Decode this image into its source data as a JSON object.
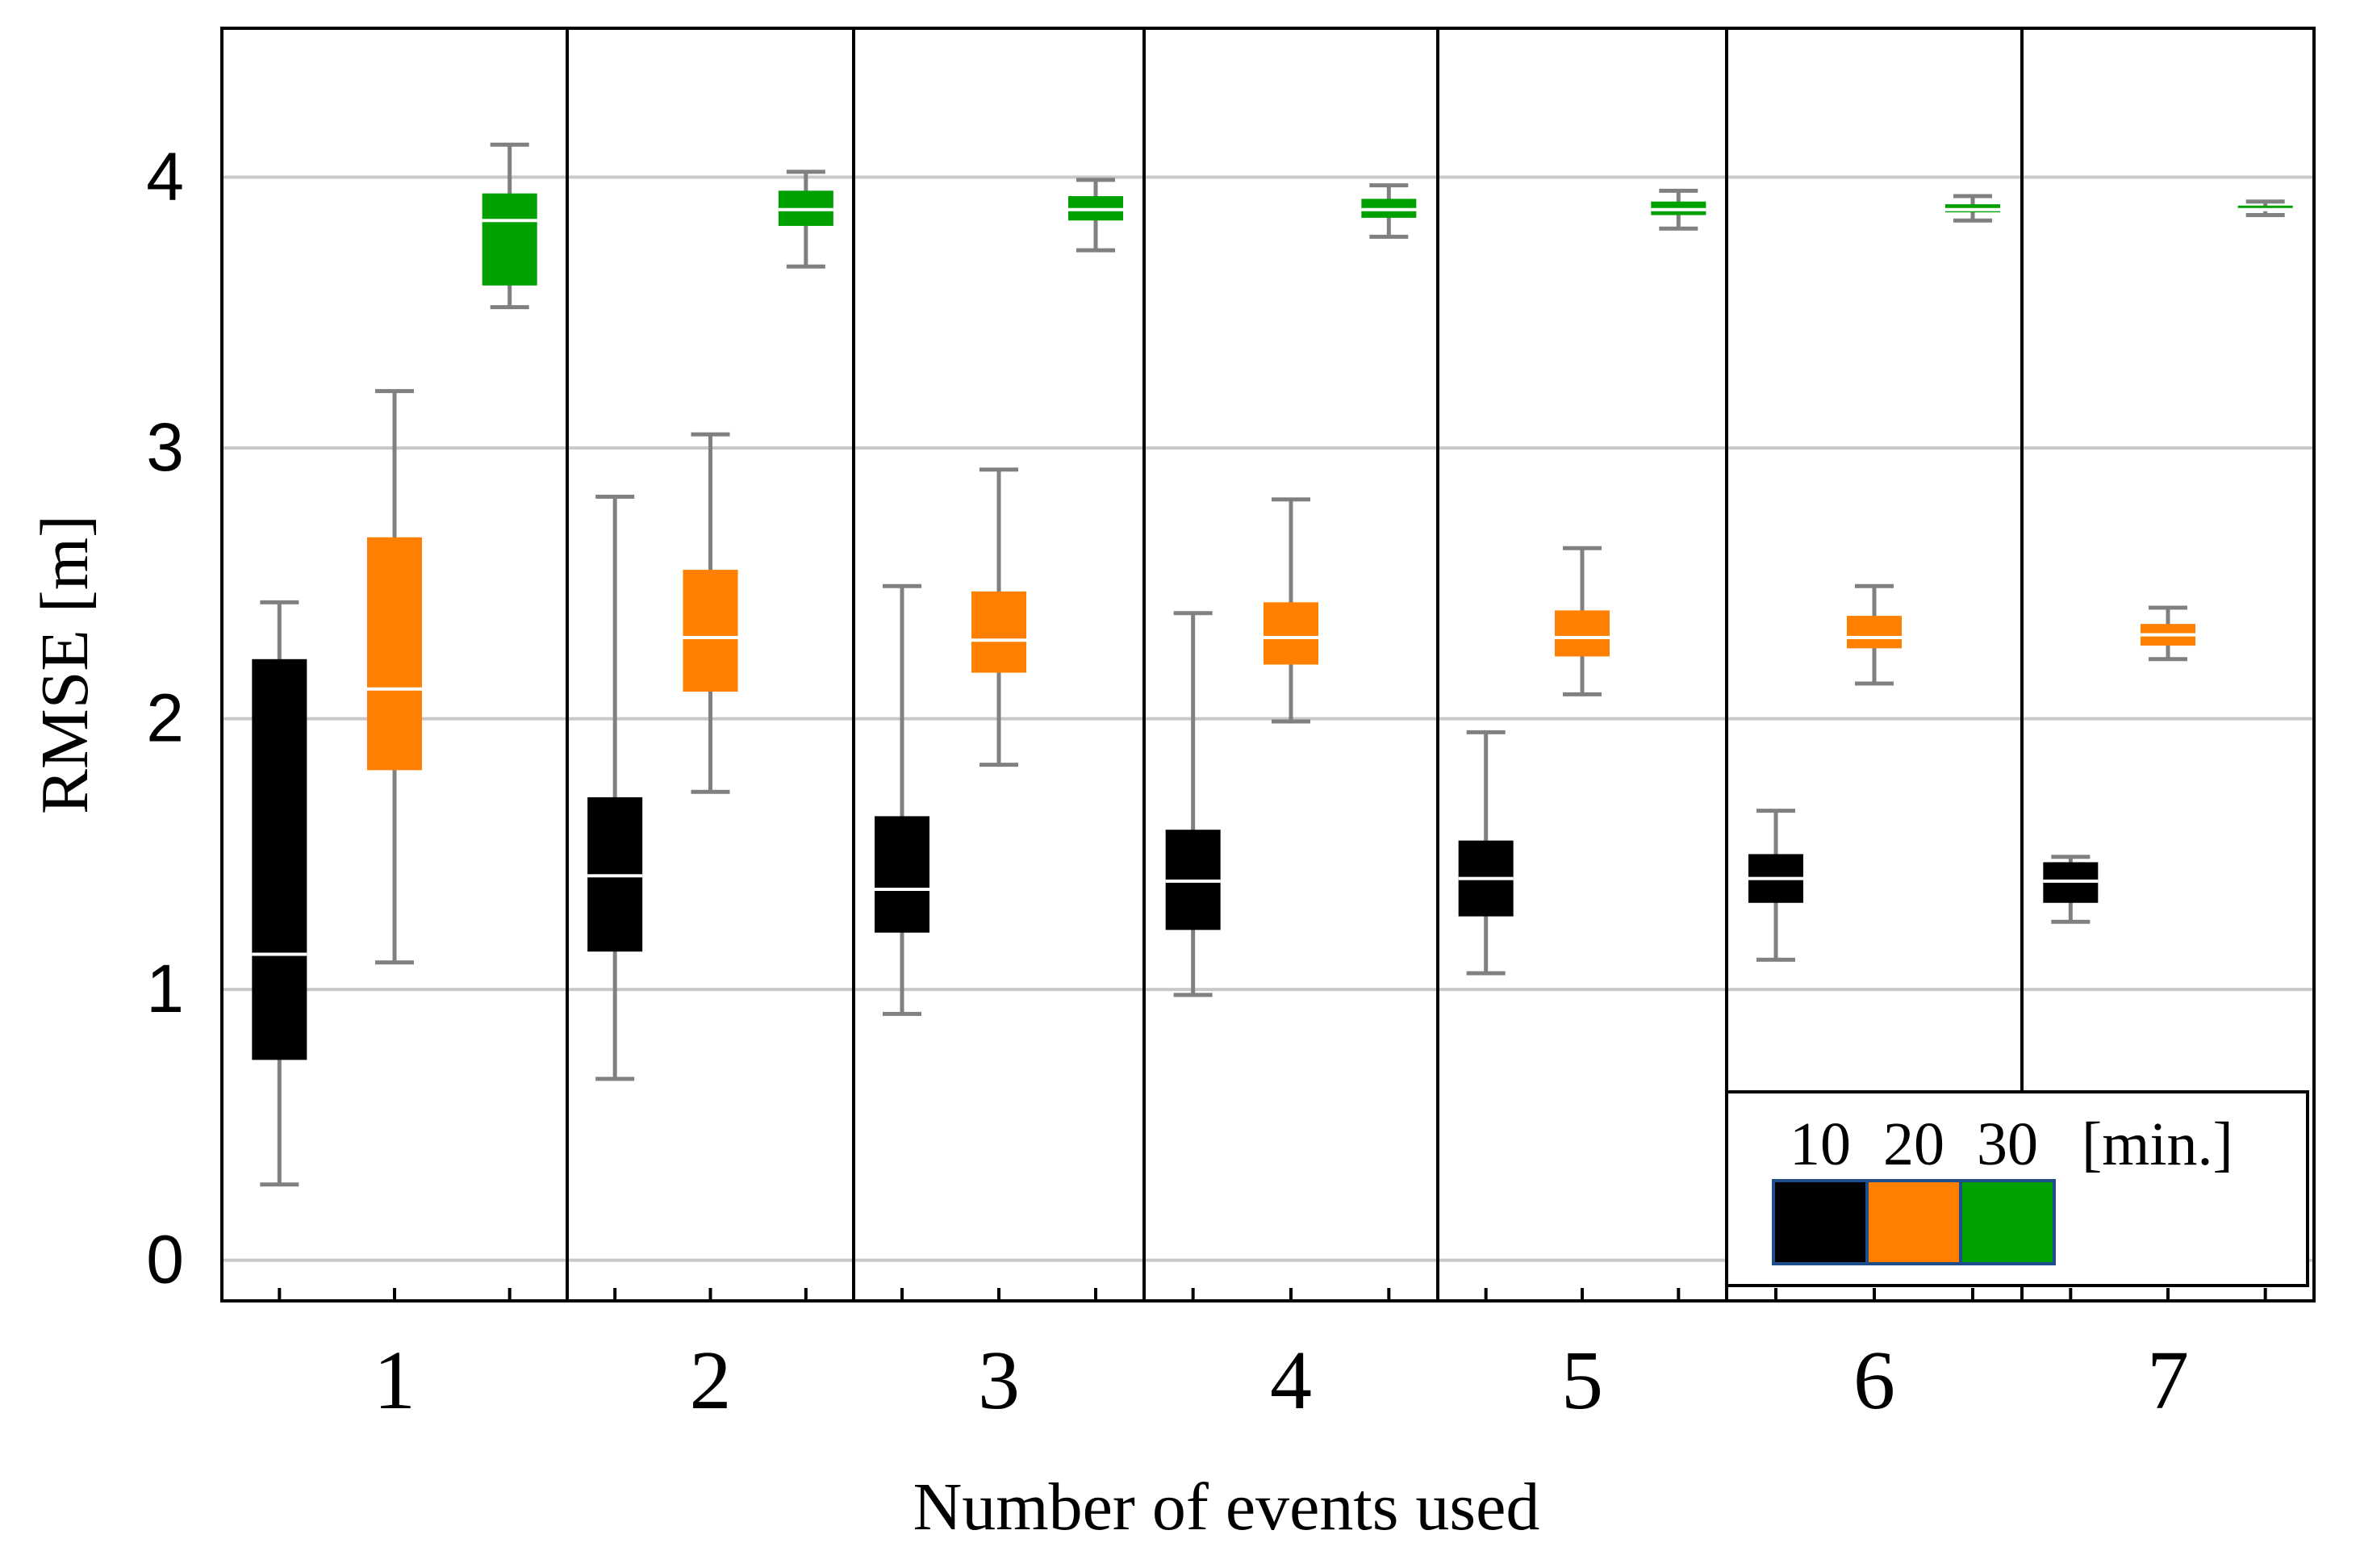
{
  "chart_data": {
    "type": "boxplot",
    "xlabel": "Number of events used",
    "ylabel": "RMSE [m]",
    "ylim": [
      -0.15,
      4.55
    ],
    "yticks": [
      0,
      1,
      2,
      3,
      4
    ],
    "grid": "horizontal",
    "categories": [
      "1",
      "2",
      "3",
      "4",
      "5",
      "6",
      "7"
    ],
    "legend": {
      "placement": "bottom-right",
      "unit_label": "[min.]",
      "entries": [
        {
          "label": "10",
          "color": "#000000"
        },
        {
          "label": "20",
          "color": "#ff8000"
        },
        {
          "label": "30",
          "color": "#00a000"
        }
      ]
    },
    "series": [
      {
        "name": "10",
        "color": "#000000",
        "boxes": [
          {
            "min": 0.28,
            "q1": 0.74,
            "median": 1.13,
            "q3": 2.22,
            "max": 2.43
          },
          {
            "min": 0.67,
            "q1": 1.14,
            "median": 1.42,
            "q3": 1.71,
            "max": 2.82
          },
          {
            "min": 0.91,
            "q1": 1.21,
            "median": 1.37,
            "q3": 1.64,
            "max": 2.49
          },
          {
            "min": 0.98,
            "q1": 1.22,
            "median": 1.4,
            "q3": 1.59,
            "max": 2.39
          },
          {
            "min": 1.06,
            "q1": 1.27,
            "median": 1.41,
            "q3": 1.55,
            "max": 1.95
          },
          {
            "min": 1.11,
            "q1": 1.32,
            "median": 1.41,
            "q3": 1.5,
            "max": 1.66
          },
          {
            "min": 1.25,
            "q1": 1.32,
            "median": 1.4,
            "q3": 1.47,
            "max": 1.49
          }
        ]
      },
      {
        "name": "20",
        "color": "#ff8000",
        "boxes": [
          {
            "min": 1.1,
            "q1": 1.81,
            "median": 2.11,
            "q3": 2.67,
            "max": 3.21
          },
          {
            "min": 1.73,
            "q1": 2.1,
            "median": 2.3,
            "q3": 2.55,
            "max": 3.05
          },
          {
            "min": 1.83,
            "q1": 2.17,
            "median": 2.29,
            "q3": 2.47,
            "max": 2.92
          },
          {
            "min": 1.99,
            "q1": 2.2,
            "median": 2.3,
            "q3": 2.43,
            "max": 2.81
          },
          {
            "min": 2.09,
            "q1": 2.23,
            "median": 2.3,
            "q3": 2.4,
            "max": 2.63
          },
          {
            "min": 2.13,
            "q1": 2.26,
            "median": 2.3,
            "q3": 2.38,
            "max": 2.49
          },
          {
            "min": 2.22,
            "q1": 2.27,
            "median": 2.31,
            "q3": 2.35,
            "max": 2.41
          }
        ]
      },
      {
        "name": "30",
        "color": "#00a000",
        "boxes": [
          {
            "min": 3.52,
            "q1": 3.6,
            "median": 3.84,
            "q3": 3.94,
            "max": 4.12
          },
          {
            "min": 3.67,
            "q1": 3.82,
            "median": 3.88,
            "q3": 3.95,
            "max": 4.02
          },
          {
            "min": 3.73,
            "q1": 3.84,
            "median": 3.88,
            "q3": 3.93,
            "max": 3.99
          },
          {
            "min": 3.78,
            "q1": 3.85,
            "median": 3.88,
            "q3": 3.92,
            "max": 3.97
          },
          {
            "min": 3.81,
            "q1": 3.86,
            "median": 3.88,
            "q3": 3.91,
            "max": 3.95
          },
          {
            "min": 3.84,
            "q1": 3.87,
            "median": 3.88,
            "q3": 3.9,
            "max": 3.93
          },
          {
            "min": 3.86,
            "q1": 3.875,
            "median": 3.88,
            "q3": 3.895,
            "max": 3.91
          }
        ]
      }
    ]
  }
}
